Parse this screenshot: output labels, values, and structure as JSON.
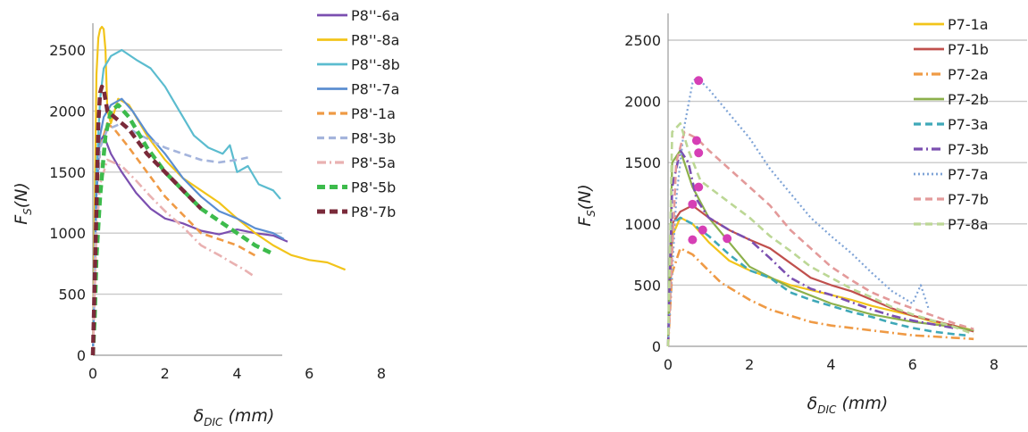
{
  "chart_data": [
    {
      "type": "line",
      "xlabel": "δDIC (mm)",
      "xlabel_main": "δ",
      "xlabel_sub": "DIC",
      "xlabel_unit": " (mm)",
      "ylabel_main": "F",
      "ylabel_sub": "S",
      "ylabel_unit": "(N)",
      "xlim": [
        0,
        8
      ],
      "ylim": [
        0,
        2500
      ],
      "xticks": [
        "0",
        "2",
        "4",
        "6",
        "8"
      ],
      "yticks": [
        "0",
        "500",
        "1000",
        "1500",
        "2000",
        "2500"
      ],
      "grid": "horizontal",
      "legend_position": "top-right",
      "series": [
        {
          "name": "P8''-6a",
          "color": "#7b4fb0",
          "style": "solid",
          "x": [
            0,
            0.05,
            0.1,
            0.15,
            0.2,
            0.3,
            0.5,
            0.8,
            1.2,
            1.6,
            2,
            2.5,
            3,
            3.5,
            4,
            4.5,
            5,
            5.4
          ],
          "y": [
            0,
            900,
            1400,
            1650,
            1750,
            1800,
            1650,
            1500,
            1330,
            1200,
            1120,
            1080,
            1020,
            990,
            1030,
            1000,
            980,
            930
          ]
        },
        {
          "name": "P8''-8a",
          "color": "#f2c41a",
          "style": "solid",
          "x": [
            0,
            0.05,
            0.1,
            0.15,
            0.2,
            0.25,
            0.3,
            0.35,
            0.4,
            0.5,
            0.7,
            1,
            1.5,
            2,
            2.5,
            3,
            3.5,
            4,
            4.5,
            5,
            5.5,
            6,
            6.5,
            7
          ],
          "y": [
            0,
            1200,
            2300,
            2600,
            2670,
            2690,
            2670,
            2500,
            2000,
            1900,
            2100,
            2050,
            1800,
            1600,
            1450,
            1350,
            1250,
            1120,
            1000,
            900,
            820,
            780,
            760,
            700
          ]
        },
        {
          "name": "P8''-8b",
          "color": "#5bbccf",
          "style": "solid",
          "x": [
            0,
            0.1,
            0.2,
            0.3,
            0.5,
            0.8,
            1.2,
            1.6,
            2,
            2.4,
            2.8,
            3.2,
            3.6,
            3.8,
            4,
            4.3,
            4.6,
            5,
            5.2
          ],
          "y": [
            0,
            1500,
            2100,
            2350,
            2450,
            2500,
            2420,
            2350,
            2200,
            2000,
            1800,
            1700,
            1650,
            1720,
            1500,
            1550,
            1400,
            1350,
            1280
          ]
        },
        {
          "name": "P8''-7a",
          "color": "#5b8ed1",
          "style": "solid",
          "x": [
            0,
            0.1,
            0.2,
            0.3,
            0.5,
            0.8,
            1.1,
            1.5,
            2,
            2.5,
            3,
            3.5,
            4,
            4.5,
            5,
            5.3
          ],
          "y": [
            0,
            1300,
            1800,
            1950,
            2050,
            2100,
            2000,
            1820,
            1650,
            1450,
            1300,
            1180,
            1120,
            1040,
            1000,
            950
          ]
        },
        {
          "name": "P8'-1a",
          "color": "#ef9a45",
          "style": "dash",
          "x": [
            0,
            0.1,
            0.2,
            0.4,
            0.6,
            1,
            1.5,
            2,
            2.5,
            3,
            3.5,
            4,
            4.3,
            4.6
          ],
          "y": [
            0,
            1200,
            1700,
            1900,
            1850,
            1700,
            1500,
            1300,
            1150,
            1000,
            950,
            900,
            850,
            800
          ]
        },
        {
          "name": "P8'-3b",
          "color": "#a4b4dc",
          "style": "dash",
          "x": [
            0,
            0.1,
            0.2,
            0.4,
            0.8,
            1.2,
            1.6,
            2,
            2.5,
            3,
            3.5,
            4,
            4.3
          ],
          "y": [
            0,
            1300,
            1700,
            1850,
            1900,
            1820,
            1760,
            1700,
            1650,
            1600,
            1580,
            1600,
            1620
          ]
        },
        {
          "name": "P8'-5a",
          "color": "#e9b1b1",
          "style": "dashdot",
          "x": [
            0,
            0.1,
            0.2,
            0.4,
            0.8,
            1.2,
            1.6,
            2,
            2.5,
            3,
            3.5,
            3.9,
            4.2,
            4.5
          ],
          "y": [
            0,
            1000,
            1400,
            1600,
            1550,
            1430,
            1300,
            1180,
            1050,
            900,
            820,
            750,
            700,
            640
          ]
        },
        {
          "name": "P8'-5b",
          "color": "#3dbb4c",
          "style": "thickdash",
          "x": [
            0,
            0.05,
            0.1,
            0.2,
            0.35,
            0.5,
            0.7,
            1,
            1.5,
            2,
            2.5,
            3,
            3.5,
            4,
            4.5,
            5
          ],
          "y": [
            0,
            300,
            800,
            1300,
            1800,
            2000,
            2050,
            1950,
            1700,
            1500,
            1350,
            1200,
            1100,
            1000,
            900,
            830
          ]
        },
        {
          "name": "P8'-7b",
          "color": "#7a2a3a",
          "style": "thickdash",
          "x": [
            0,
            0.05,
            0.1,
            0.15,
            0.2,
            0.25,
            0.3,
            0.4,
            0.6,
            1,
            1.5,
            2,
            2.5,
            3
          ],
          "y": [
            0,
            600,
            1200,
            1900,
            2150,
            2200,
            2180,
            2000,
            1950,
            1850,
            1650,
            1500,
            1350,
            1200
          ]
        }
      ]
    },
    {
      "type": "line",
      "xlabel": "δDIC (mm)",
      "xlabel_main": "δ",
      "xlabel_sub": "DIC",
      "xlabel_unit": " (mm)",
      "ylabel_main": "F",
      "ylabel_sub": "S",
      "ylabel_unit": "(N)",
      "xlim": [
        0,
        8
      ],
      "ylim": [
        0,
        2500
      ],
      "xticks": [
        "0",
        "2",
        "4",
        "6",
        "8"
      ],
      "yticks": [
        "0",
        "500",
        "1000",
        "1500",
        "2000",
        "2500"
      ],
      "grid": "horizontal",
      "legend_position": "top-right",
      "markers": {
        "color": "#d63fb5",
        "points": [
          [
            0.75,
            2170
          ],
          [
            0.7,
            1680
          ],
          [
            0.75,
            1580
          ],
          [
            0.75,
            1300
          ],
          [
            0.6,
            1160
          ],
          [
            0.85,
            950
          ],
          [
            0.6,
            870
          ],
          [
            1.45,
            880
          ]
        ]
      },
      "series": [
        {
          "name": "P7-1a",
          "color": "#f2c41a",
          "style": "solid",
          "x": [
            0,
            0.1,
            0.3,
            0.6,
            1,
            1.5,
            2,
            2.5,
            3,
            3.5,
            4,
            4.5,
            5,
            5.5,
            6,
            6.5,
            7,
            7.5
          ],
          "y": [
            0,
            900,
            1050,
            1000,
            850,
            700,
            620,
            560,
            500,
            460,
            420,
            380,
            330,
            290,
            250,
            200,
            170,
            130
          ]
        },
        {
          "name": "P7-1b",
          "color": "#c0504d",
          "style": "solid",
          "x": [
            0,
            0.1,
            0.3,
            0.6,
            1,
            1.5,
            2,
            2.5,
            3,
            3.5,
            4,
            4.5,
            5,
            5.5,
            6,
            6.5,
            7,
            7.5
          ],
          "y": [
            0,
            1000,
            1100,
            1150,
            1050,
            950,
            870,
            800,
            680,
            560,
            500,
            450,
            380,
            310,
            250,
            210,
            170,
            120
          ]
        },
        {
          "name": "P7-2a",
          "color": "#ef9a45",
          "style": "dashdot",
          "x": [
            0,
            0.1,
            0.3,
            0.6,
            0.9,
            1.3,
            2,
            2.5,
            3,
            3.5,
            4,
            4.5,
            5,
            5.5,
            6,
            6.5,
            7,
            7.5
          ],
          "y": [
            0,
            600,
            800,
            750,
            650,
            520,
            380,
            300,
            250,
            200,
            170,
            150,
            130,
            110,
            90,
            80,
            70,
            60
          ]
        },
        {
          "name": "P7-2b",
          "color": "#8cb04b",
          "style": "solid",
          "x": [
            0,
            0.1,
            0.3,
            0.6,
            1,
            1.5,
            2,
            3,
            4,
            5,
            6,
            7,
            7.5
          ],
          "y": [
            0,
            1500,
            1600,
            1300,
            1050,
            850,
            650,
            480,
            350,
            260,
            200,
            160,
            130
          ]
        },
        {
          "name": "P7-3a",
          "color": "#3fa8b8",
          "style": "dash",
          "x": [
            0,
            0.1,
            0.3,
            0.6,
            1,
            1.5,
            2,
            2.5,
            3,
            3.5,
            4,
            4.5,
            5,
            5.5,
            6,
            6.5,
            7,
            7.3
          ],
          "y": [
            0,
            1000,
            1050,
            1000,
            900,
            750,
            620,
            560,
            440,
            380,
            330,
            280,
            240,
            190,
            150,
            120,
            100,
            90
          ]
        },
        {
          "name": "P7-3b",
          "color": "#7b4fb0",
          "style": "dashdot",
          "x": [
            0,
            0.1,
            0.3,
            0.5,
            0.7,
            1,
            1.5,
            2,
            2.5,
            3,
            3.5,
            4,
            4.5,
            5,
            5.5,
            6,
            6.5,
            7
          ],
          "y": [
            0,
            1300,
            1600,
            1500,
            1200,
            1050,
            950,
            870,
            720,
            560,
            470,
            420,
            360,
            300,
            250,
            210,
            180,
            150
          ]
        },
        {
          "name": "P7-7a",
          "color": "#7ea3d6",
          "style": "dot",
          "x": [
            0,
            0.2,
            0.4,
            0.6,
            0.7,
            1,
            1.5,
            2,
            2.5,
            3,
            3.5,
            4,
            4.5,
            5,
            5.5,
            6,
            6.2,
            6.4
          ],
          "y": [
            0,
            1200,
            1800,
            2150,
            2200,
            2100,
            1900,
            1700,
            1450,
            1250,
            1050,
            900,
            760,
            600,
            450,
            350,
            500,
            300
          ]
        },
        {
          "name": "P7-7b",
          "color": "#e39a9a",
          "style": "dash",
          "x": [
            0,
            0.2,
            0.4,
            0.7,
            1,
            1.5,
            2,
            2.5,
            3,
            3.5,
            4,
            4.5,
            5,
            5.5,
            6,
            6.5,
            7,
            7.5
          ],
          "y": [
            0,
            1500,
            1750,
            1700,
            1600,
            1450,
            1300,
            1150,
            950,
            800,
            650,
            540,
            440,
            370,
            310,
            250,
            190,
            140
          ]
        },
        {
          "name": "P7-8a",
          "color": "#bcd795",
          "style": "dash",
          "x": [
            0,
            0.1,
            0.3,
            0.5,
            0.8,
            1.2,
            1.6,
            2,
            2.5,
            3,
            3.5,
            4,
            4.5,
            5,
            5.5,
            6,
            6.5,
            7,
            7.5
          ],
          "y": [
            0,
            1750,
            1820,
            1600,
            1350,
            1250,
            1150,
            1050,
            900,
            780,
            650,
            560,
            470,
            400,
            320,
            260,
            210,
            160,
            100
          ]
        }
      ]
    }
  ]
}
